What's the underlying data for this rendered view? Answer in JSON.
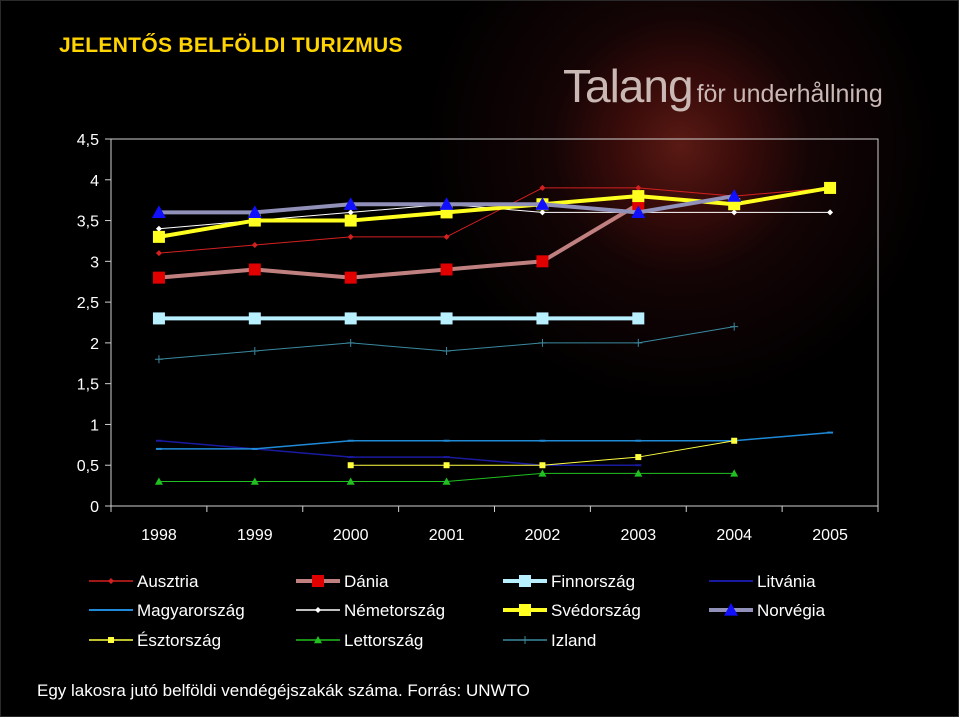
{
  "slide": {
    "title": "JELENTŐS BELFÖLDI TURIZMUS",
    "brand_main": "Talang",
    "brand_sub": "för underhållning",
    "caption": "Egy lakosra jutó belföldi vendégéjszakák száma. Forrás: UNWTO"
  },
  "colors": {
    "background": "#000000",
    "title": "#ffd400",
    "text": "#ffffff",
    "axis": "#d0d0d0"
  },
  "chart_data": {
    "type": "line",
    "title": "",
    "xlabel": "",
    "ylabel": "",
    "x": [
      "1998",
      "1999",
      "2000",
      "2001",
      "2002",
      "2003",
      "2004",
      "2005"
    ],
    "ylim": [
      0,
      4.5
    ],
    "yticks": [
      "0",
      "0,5",
      "1",
      "1,5",
      "2",
      "2,5",
      "3",
      "3,5",
      "4",
      "4,5"
    ],
    "legend_position": "bottom",
    "series": [
      {
        "name": "Ausztria",
        "color": "#d42020",
        "marker": "diamond",
        "width": 1,
        "msize": 3,
        "values": [
          3.1,
          3.2,
          3.3,
          3.3,
          3.9,
          3.9,
          3.8,
          3.9
        ]
      },
      {
        "name": "Dánia",
        "color": "#e00000",
        "line_color": "#c08080",
        "marker": "square",
        "width": 4,
        "msize": 6,
        "values": [
          2.8,
          2.9,
          2.8,
          2.9,
          3.0,
          3.7,
          null,
          null
        ]
      },
      {
        "name": "Finnország",
        "color": "#b8f0ff",
        "marker": "square",
        "width": 4,
        "msize": 6,
        "values": [
          2.3,
          2.3,
          2.3,
          2.3,
          2.3,
          2.3,
          null,
          null
        ]
      },
      {
        "name": "Litvánia",
        "color": "#1a1aa0",
        "marker": "dash",
        "width": 1.5,
        "msize": 3,
        "values": [
          0.8,
          0.7,
          0.6,
          0.6,
          0.5,
          0.5,
          null,
          null
        ]
      },
      {
        "name": "Magyarország",
        "color": "#1f8ad8",
        "marker": "dash",
        "width": 1.5,
        "msize": 3,
        "values": [
          0.7,
          0.7,
          0.8,
          0.8,
          0.8,
          0.8,
          0.8,
          0.9
        ]
      },
      {
        "name": "Németország",
        "color": "#ffffff",
        "marker": "diamond",
        "width": 1,
        "msize": 3,
        "values": [
          3.4,
          3.5,
          3.6,
          3.7,
          3.6,
          3.6,
          3.6,
          3.6
        ]
      },
      {
        "name": "Svédország",
        "color": "#ffff20",
        "marker": "square",
        "width": 4,
        "msize": 6,
        "values": [
          3.3,
          3.5,
          3.5,
          3.6,
          3.7,
          3.8,
          3.7,
          3.9
        ]
      },
      {
        "name": "Norvégia",
        "color": "#1010ff",
        "line_color": "#9090b8",
        "marker": "triangle",
        "width": 4,
        "msize": 7,
        "values": [
          3.6,
          3.6,
          3.7,
          3.7,
          3.7,
          3.6,
          3.8,
          null
        ]
      },
      {
        "name": "Észtország",
        "color": "#ffff40",
        "marker": "square",
        "width": 1,
        "msize": 3,
        "values": [
          null,
          null,
          0.5,
          0.5,
          0.5,
          0.6,
          0.8,
          null
        ]
      },
      {
        "name": "Lettország",
        "color": "#20c020",
        "marker": "triangle",
        "width": 1,
        "msize": 4,
        "values": [
          0.3,
          0.3,
          0.3,
          0.3,
          0.4,
          0.4,
          0.4,
          null
        ]
      },
      {
        "name": "Izland",
        "color": "#3a8aa0",
        "marker": "plus",
        "width": 1,
        "msize": 4,
        "values": [
          1.8,
          1.9,
          2.0,
          1.9,
          2.0,
          2.0,
          2.2,
          null
        ]
      }
    ]
  }
}
